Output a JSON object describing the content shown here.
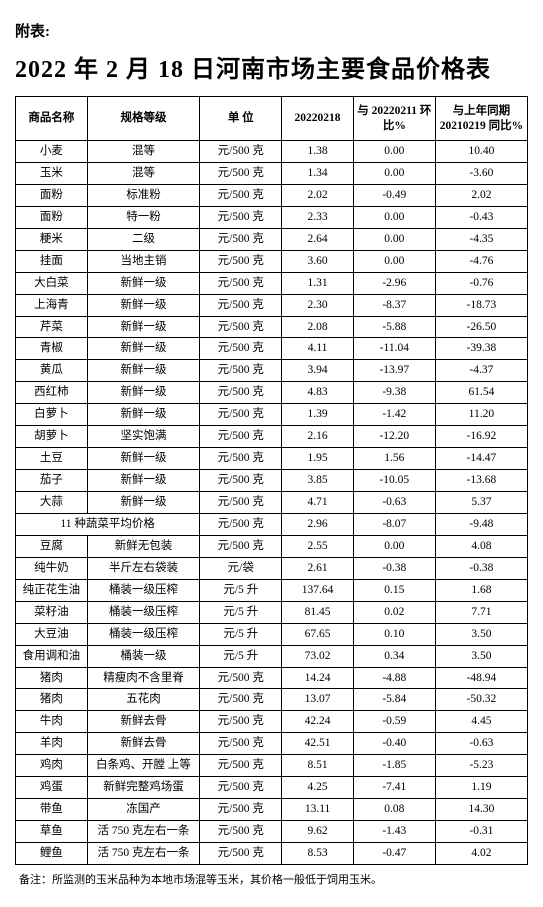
{
  "preTitle": "附表:",
  "title": "2022 年 2 月 18 日河南市场主要食品价格表",
  "headers": {
    "name": "商品名称",
    "spec": "规格等级",
    "unit": "单 位",
    "price": "20220218",
    "wow": "与 20220211 环比%",
    "yoy": "与上年同期 20210219 同比%"
  },
  "avgRow": {
    "label": "11 种蔬菜平均价格",
    "unit": "元/500 克",
    "price": "2.96",
    "wow": "-8.07",
    "yoy": "-9.48"
  },
  "rows": [
    {
      "name": "小麦",
      "spec": "混等",
      "unit": "元/500 克",
      "price": "1.38",
      "wow": "0.00",
      "yoy": "10.40"
    },
    {
      "name": "玉米",
      "spec": "混等",
      "unit": "元/500 克",
      "price": "1.34",
      "wow": "0.00",
      "yoy": "-3.60"
    },
    {
      "name": "面粉",
      "spec": "标准粉",
      "unit": "元/500 克",
      "price": "2.02",
      "wow": "-0.49",
      "yoy": "2.02"
    },
    {
      "name": "面粉",
      "spec": "特一粉",
      "unit": "元/500 克",
      "price": "2.33",
      "wow": "0.00",
      "yoy": "-0.43"
    },
    {
      "name": "粳米",
      "spec": "二级",
      "unit": "元/500 克",
      "price": "2.64",
      "wow": "0.00",
      "yoy": "-4.35"
    },
    {
      "name": "挂面",
      "spec": "当地主销",
      "unit": "元/500 克",
      "price": "3.60",
      "wow": "0.00",
      "yoy": "-4.76"
    },
    {
      "name": "大白菜",
      "spec": "新鲜一级",
      "unit": "元/500 克",
      "price": "1.31",
      "wow": "-2.96",
      "yoy": "-0.76"
    },
    {
      "name": "上海青",
      "spec": "新鲜一级",
      "unit": "元/500 克",
      "price": "2.30",
      "wow": "-8.37",
      "yoy": "-18.73"
    },
    {
      "name": "芹菜",
      "spec": "新鲜一级",
      "unit": "元/500 克",
      "price": "2.08",
      "wow": "-5.88",
      "yoy": "-26.50"
    },
    {
      "name": "青椒",
      "spec": "新鲜一级",
      "unit": "元/500 克",
      "price": "4.11",
      "wow": "-11.04",
      "yoy": "-39.38"
    },
    {
      "name": "黄瓜",
      "spec": "新鲜一级",
      "unit": "元/500 克",
      "price": "3.94",
      "wow": "-13.97",
      "yoy": "-4.37"
    },
    {
      "name": "西红柿",
      "spec": "新鲜一级",
      "unit": "元/500 克",
      "price": "4.83",
      "wow": "-9.38",
      "yoy": "61.54"
    },
    {
      "name": "白萝卜",
      "spec": "新鲜一级",
      "unit": "元/500 克",
      "price": "1.39",
      "wow": "-1.42",
      "yoy": "11.20"
    },
    {
      "name": "胡萝卜",
      "spec": "坚实饱满",
      "unit": "元/500 克",
      "price": "2.16",
      "wow": "-12.20",
      "yoy": "-16.92"
    },
    {
      "name": "土豆",
      "spec": "新鲜一级",
      "unit": "元/500 克",
      "price": "1.95",
      "wow": "1.56",
      "yoy": "-14.47"
    },
    {
      "name": "茄子",
      "spec": "新鲜一级",
      "unit": "元/500 克",
      "price": "3.85",
      "wow": "-10.05",
      "yoy": "-13.68"
    },
    {
      "name": "大蒜",
      "spec": "新鲜一级",
      "unit": "元/500 克",
      "price": "4.71",
      "wow": "-0.63",
      "yoy": "5.37"
    }
  ],
  "rows2": [
    {
      "name": "豆腐",
      "spec": "新鲜无包装",
      "unit": "元/500 克",
      "price": "2.55",
      "wow": "0.00",
      "yoy": "4.08"
    },
    {
      "name": "纯牛奶",
      "spec": "半斤左右袋装",
      "unit": "元/袋",
      "price": "2.61",
      "wow": "-0.38",
      "yoy": "-0.38"
    },
    {
      "name": "纯正花生油",
      "spec": "桶装一级压榨",
      "unit": "元/5 升",
      "price": "137.64",
      "wow": "0.15",
      "yoy": "1.68"
    },
    {
      "name": "菜籽油",
      "spec": "桶装一级压榨",
      "unit": "元/5 升",
      "price": "81.45",
      "wow": "0.02",
      "yoy": "7.71"
    },
    {
      "name": "大豆油",
      "spec": "桶装一级压榨",
      "unit": "元/5 升",
      "price": "67.65",
      "wow": "0.10",
      "yoy": "3.50"
    },
    {
      "name": "食用调和油",
      "spec": "桶装一级",
      "unit": "元/5 升",
      "price": "73.02",
      "wow": "0.34",
      "yoy": "3.50"
    },
    {
      "name": "猪肉",
      "spec": "精瘦肉不含里脊",
      "unit": "元/500 克",
      "price": "14.24",
      "wow": "-4.88",
      "yoy": "-48.94"
    },
    {
      "name": "猪肉",
      "spec": "五花肉",
      "unit": "元/500 克",
      "price": "13.07",
      "wow": "-5.84",
      "yoy": "-50.32"
    },
    {
      "name": "牛肉",
      "spec": "新鲜去骨",
      "unit": "元/500 克",
      "price": "42.24",
      "wow": "-0.59",
      "yoy": "4.45"
    },
    {
      "name": "羊肉",
      "spec": "新鲜去骨",
      "unit": "元/500 克",
      "price": "42.51",
      "wow": "-0.40",
      "yoy": "-0.63"
    },
    {
      "name": "鸡肉",
      "spec": "白条鸡、开膛 上等",
      "unit": "元/500 克",
      "price": "8.51",
      "wow": "-1.85",
      "yoy": "-5.23"
    },
    {
      "name": "鸡蛋",
      "spec": "新鲜完整鸡场蛋",
      "unit": "元/500 克",
      "price": "4.25",
      "wow": "-7.41",
      "yoy": "1.19"
    },
    {
      "name": "带鱼",
      "spec": "冻国产",
      "unit": "元/500 克",
      "price": "13.11",
      "wow": "0.08",
      "yoy": "14.30"
    },
    {
      "name": "草鱼",
      "spec": "活 750 克左右一条",
      "unit": "元/500 克",
      "price": "9.62",
      "wow": "-1.43",
      "yoy": "-0.31"
    },
    {
      "name": "鲤鱼",
      "spec": "活 750 克左右一条",
      "unit": "元/500 克",
      "price": "8.53",
      "wow": "-0.47",
      "yoy": "4.02"
    }
  ],
  "footnote": "备注：所监测的玉米品种为本地市场混等玉米，其价格一般低于饲用玉米。"
}
